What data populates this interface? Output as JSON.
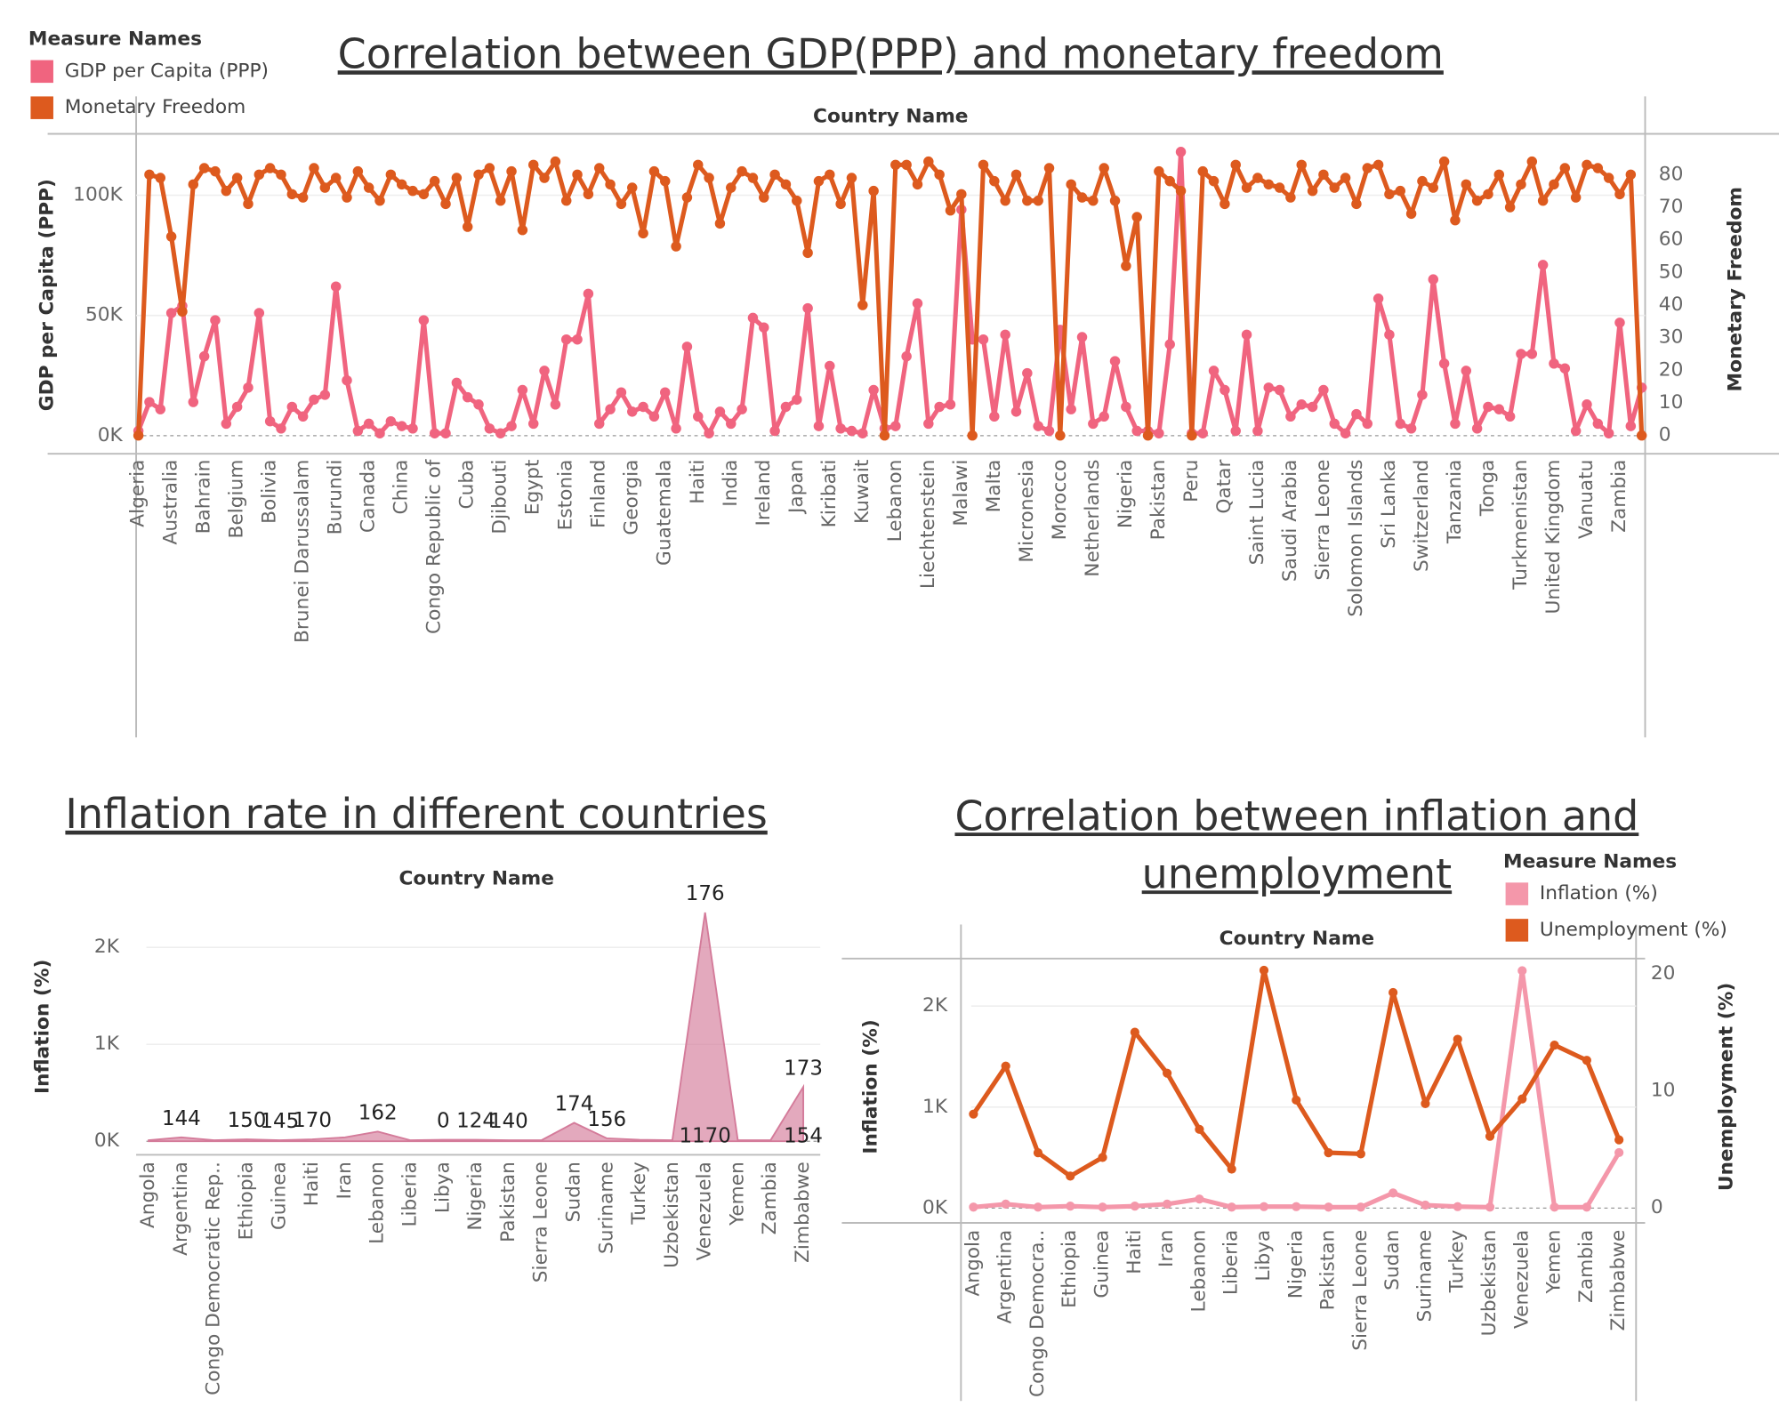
{
  "chart_data": [
    {
      "type": "line",
      "title": "Correlation between GDP(PPP) and monetary freedom",
      "x_label": "Country Name",
      "y_label": "GDP per Capita (PPP)",
      "y2_label": "Monetary Freedom",
      "legend_title": "Measure Names",
      "categories": [
        "Algeria",
        null,
        null,
        "Australia",
        null,
        null,
        "Bahrain",
        null,
        null,
        "Belgium",
        null,
        null,
        "Bolivia",
        null,
        null,
        "Brunei Darussalam",
        null,
        null,
        "Burundi",
        null,
        null,
        "Canada",
        null,
        null,
        "China",
        null,
        null,
        "Congo Republic of",
        null,
        null,
        "Cuba",
        null,
        null,
        "Djibouti",
        null,
        null,
        "Egypt",
        null,
        null,
        "Estonia",
        null,
        null,
        "Finland",
        null,
        null,
        "Georgia",
        null,
        null,
        "Guatemala",
        null,
        null,
        "Haiti",
        null,
        null,
        "India",
        null,
        null,
        "Ireland",
        null,
        null,
        "Japan",
        null,
        null,
        "Kiribati",
        null,
        null,
        "Kuwait",
        null,
        null,
        "Lebanon",
        null,
        null,
        "Liechtenstein",
        null,
        null,
        "Malawi",
        null,
        null,
        "Malta",
        null,
        null,
        "Micronesia",
        null,
        null,
        "Morocco",
        null,
        null,
        "Netherlands",
        null,
        null,
        "Nigeria",
        null,
        null,
        "Pakistan",
        null,
        null,
        "Peru",
        null,
        null,
        "Qatar",
        null,
        null,
        "Saint Lucia",
        null,
        null,
        "Saudi Arabia",
        null,
        null,
        "Sierra Leone",
        null,
        null,
        "Solomon Islands",
        null,
        null,
        "Sri Lanka",
        null,
        null,
        "Switzerland",
        null,
        null,
        "Tanzania",
        null,
        null,
        "Tonga",
        null,
        null,
        "Turkmenistan",
        null,
        null,
        "United Kingdom",
        null,
        null,
        "Vanuatu",
        null,
        null,
        "Zambia",
        null,
        null
      ],
      "series": [
        {
          "name": "GDP per Capita (PPP)",
          "color": "#f0647f",
          "axis": "y",
          "values": [
            2000,
            14000,
            11000,
            51000,
            54000,
            14000,
            33000,
            48000,
            5000,
            12000,
            20000,
            51000,
            6000,
            3000,
            12000,
            8000,
            15000,
            17000,
            62000,
            23000,
            2000,
            5000,
            1000,
            6000,
            4000,
            3000,
            48000,
            1000,
            1000,
            22000,
            16000,
            13000,
            3000,
            1000,
            4000,
            19000,
            5000,
            27000,
            13000,
            40000,
            40000,
            59000,
            5000,
            11000,
            18000,
            10000,
            12000,
            8000,
            18000,
            3000,
            37000,
            8000,
            1000,
            10000,
            5000,
            11000,
            49000,
            45000,
            2000,
            12000,
            15000,
            53000,
            4000,
            29000,
            3000,
            2000,
            1000,
            19000,
            3000,
            4000,
            33000,
            55000,
            5000,
            12000,
            13000,
            94000,
            40000,
            40000,
            8000,
            42000,
            10000,
            26000,
            4000,
            2000,
            44000,
            11000,
            41000,
            5000,
            8000,
            31000,
            12000,
            2000,
            2000,
            1000,
            38000,
            118000,
            1000,
            1000,
            27000,
            19000,
            2000,
            42000,
            2000,
            20000,
            19000,
            8000,
            13000,
            12000,
            19000,
            5000,
            1000,
            9000,
            5000,
            57000,
            42000,
            5000,
            3000,
            17000,
            65000,
            30000,
            5000,
            27000,
            3000,
            12000,
            11000,
            8000,
            34000,
            34000,
            71000,
            30000,
            28000,
            2000,
            13000,
            5000,
            1000,
            47000,
            4000,
            20000
          ]
        },
        {
          "name": "Monetary Freedom",
          "color": "#dd5a1e",
          "axis": "y2",
          "values": [
            0,
            80,
            79,
            61,
            38,
            77,
            82,
            81,
            75,
            79,
            71,
            80,
            82,
            80,
            74,
            73,
            82,
            76,
            79,
            73,
            81,
            76,
            72,
            80,
            77,
            75,
            74,
            78,
            71,
            79,
            64,
            80,
            82,
            72,
            81,
            63,
            83,
            79,
            84,
            72,
            80,
            74,
            82,
            77,
            71,
            76,
            62,
            81,
            78,
            58,
            73,
            83,
            79,
            65,
            76,
            81,
            79,
            73,
            80,
            77,
            72,
            56,
            78,
            80,
            71,
            79,
            40,
            75,
            0,
            83,
            83,
            77,
            84,
            80,
            69,
            74,
            0,
            83,
            78,
            72,
            80,
            72,
            72,
            82,
            0,
            77,
            73,
            72,
            82,
            72,
            52,
            67,
            0,
            81,
            78,
            75,
            0,
            81,
            78,
            71,
            83,
            76,
            79,
            77,
            76,
            73,
            83,
            75,
            80,
            76,
            79,
            71,
            82,
            83,
            74,
            75,
            68,
            78,
            76,
            84,
            66,
            77,
            72,
            74,
            80,
            70,
            77,
            84,
            72,
            77,
            82,
            73,
            83,
            82,
            79,
            74,
            80,
            0
          ]
        }
      ],
      "ylim": [
        -7500,
        125500
      ],
      "yticks": [
        {
          "value": 0,
          "label": "0K"
        },
        {
          "value": 50000,
          "label": "50K"
        },
        {
          "value": 100000,
          "label": "100K"
        }
      ],
      "y2lim": [
        -5.6,
        92.5
      ],
      "y2ticks": [
        0,
        10,
        20,
        30,
        40,
        50,
        60,
        70,
        80
      ],
      "grid": true,
      "markers": true
    },
    {
      "type": "area",
      "title": "Inflation rate in different countries",
      "x_label": "Country Name",
      "y_label": "Inflation (%)",
      "categories": [
        "Angola",
        "Argentina",
        "Congo Democratic Rep..",
        "Ethiopia",
        "Guinea",
        "Haiti",
        "Iran",
        "Lebanon",
        "Liberia",
        "Libya",
        "Nigeria",
        "Pakistan",
        "Sierra Leone",
        "Sudan",
        "Suriname",
        "Turkey",
        "Uzbekistan",
        "Venezuela",
        "Yemen",
        "Zambia",
        "Zimbabwe"
      ],
      "values": [
        10,
        40,
        10,
        20,
        10,
        20,
        40,
        100,
        10,
        15,
        15,
        10,
        10,
        190,
        30,
        15,
        10,
        2360,
        10,
        10,
        560
      ],
      "color": "#d47b9a",
      "labels": [
        null,
        144,
        null,
        150,
        145,
        170,
        null,
        162,
        null,
        0,
        124,
        140,
        null,
        174,
        156,
        null,
        null,
        176,
        null,
        null,
        173
      ],
      "second_labels": [
        null,
        null,
        null,
        null,
        null,
        null,
        null,
        null,
        null,
        null,
        null,
        null,
        null,
        null,
        null,
        null,
        null,
        1170,
        null,
        null,
        154
      ],
      "ylim": [
        -140,
        2470
      ],
      "yticks": [
        {
          "value": 0,
          "label": "0K"
        },
        {
          "value": 1000,
          "label": "1K"
        },
        {
          "value": 2000,
          "label": "2K"
        }
      ],
      "grid": true
    },
    {
      "type": "line",
      "title": "Correlation between inflation and unemployment",
      "x_label": "Country Name",
      "y_label": "Inflation (%)",
      "y2_label": "Unemployment (%)",
      "legend_title": "Measure Names",
      "categories": [
        "Angola",
        "Argentina",
        "Congo Democra..",
        "Ethiopia",
        "Guinea",
        "Haiti",
        "Iran",
        "Lebanon",
        "Liberia",
        "Libya",
        "Nigeria",
        "Pakistan",
        "Sierra Leone",
        "Sudan",
        "Suriname",
        "Turkey",
        "Uzbekistan",
        "Venezuela",
        "Yemen",
        "Zambia",
        "Zimbabwe"
      ],
      "series": [
        {
          "name": "Inflation (%)",
          "color": "#f497aa",
          "axis": "y",
          "values": [
            10,
            40,
            10,
            20,
            10,
            20,
            40,
            90,
            10,
            15,
            15,
            10,
            10,
            150,
            30,
            15,
            10,
            2350,
            10,
            10,
            550
          ]
        },
        {
          "name": "Unemployment (%)",
          "color": "#dd5a1e",
          "axis": "y2",
          "values": [
            8.0,
            12.1,
            4.7,
            2.7,
            4.3,
            15.0,
            11.5,
            6.7,
            3.3,
            20.3,
            9.2,
            4.7,
            4.6,
            18.4,
            8.9,
            14.4,
            6.1,
            9.3,
            13.9,
            12.6,
            5.8
          ]
        }
      ],
      "ylim": [
        -146,
        2470
      ],
      "yticks": [
        {
          "value": 0,
          "label": "0K"
        },
        {
          "value": 1000,
          "label": "1K"
        },
        {
          "value": 2000,
          "label": "2K"
        }
      ],
      "y2lim": [
        -1.3,
        21.3
      ],
      "y2ticks": [
        0,
        10,
        20
      ],
      "grid": true,
      "markers": true
    }
  ]
}
